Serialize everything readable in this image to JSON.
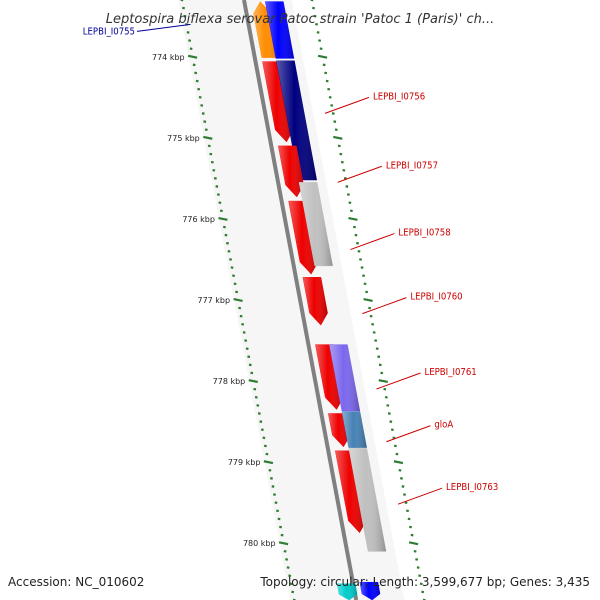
{
  "title": "Leptospira biflexa serovar Patoc strain 'Patoc 1 (Paris)' ch...",
  "footer": {
    "accession": "Accession: NC_010602",
    "topology": "Topology: circular; Length: 3,599,677 bp; Genes: 3,435"
  },
  "colors": {
    "backbone": "#808080",
    "tick": "#2e7d32",
    "cds": "#ee0000",
    "label_red": "#cc0000",
    "label_blue": "#000099"
  },
  "scale": {
    "start_kbp": 773.3,
    "end_kbp": 780.7,
    "ticks": [
      {
        "kbp": 774,
        "label": "774 kbp"
      },
      {
        "kbp": 775,
        "label": "775 kbp"
      },
      {
        "kbp": 776,
        "label": "776 kbp"
      },
      {
        "kbp": 777,
        "label": "777 kbp"
      },
      {
        "kbp": 778,
        "label": "778 kbp"
      },
      {
        "kbp": 779,
        "label": "779 kbp"
      },
      {
        "kbp": 780,
        "label": "780 kbp"
      }
    ]
  },
  "features": [
    {
      "track": "cds",
      "start": 773.32,
      "end": 774.01,
      "strand": -1,
      "color": "#ff8c00"
    },
    {
      "track": "blast",
      "start": 773.32,
      "end": 774.02,
      "color": "#0000ff"
    },
    {
      "track": "cds",
      "start": 774.06,
      "end": 775.05,
      "strand": 1,
      "color": "#ee0000"
    },
    {
      "track": "blast",
      "start": 774.05,
      "end": 775.52,
      "color": "#000080"
    },
    {
      "track": "cds",
      "start": 775.1,
      "end": 775.73,
      "strand": 1,
      "color": "#ee0000"
    },
    {
      "track": "cds",
      "start": 775.78,
      "end": 776.68,
      "strand": 1,
      "color": "#ee0000"
    },
    {
      "track": "blast",
      "start": 775.55,
      "end": 776.58,
      "color": "#c0c0c0"
    },
    {
      "track": "cds",
      "start": 776.72,
      "end": 777.31,
      "strand": 1,
      "color": "#ee0000"
    },
    {
      "track": "cds",
      "start": 777.55,
      "end": 778.35,
      "strand": 1,
      "color": "#ee0000"
    },
    {
      "track": "blast",
      "start": 777.55,
      "end": 778.37,
      "color": "#7b68ee"
    },
    {
      "track": "cds",
      "start": 778.4,
      "end": 778.81,
      "strand": 1,
      "color": "#ee0000"
    },
    {
      "track": "blast",
      "start": 778.38,
      "end": 778.82,
      "color": "#4682b4"
    },
    {
      "track": "cds",
      "start": 778.86,
      "end": 779.87,
      "strand": 1,
      "color": "#ee0000"
    },
    {
      "track": "blast",
      "start": 778.83,
      "end": 780.1,
      "color": "#c0c0c0"
    },
    {
      "track": "cds_alt",
      "start": 780.5,
      "end": 780.7,
      "strand": 1,
      "color": "#00cccc"
    },
    {
      "track": "cds",
      "start": 780.48,
      "end": 780.7,
      "strand": 1,
      "color": "#0000ff"
    }
  ],
  "labels": [
    {
      "text": "LEPBI_I0755",
      "kbp": 773.6,
      "side": "left",
      "color": "#000099"
    },
    {
      "text": "LEPBI_I0756",
      "kbp": 774.55,
      "side": "right",
      "color": "#cc0000"
    },
    {
      "text": "LEPBI_I0757",
      "kbp": 775.4,
      "side": "right",
      "color": "#cc0000"
    },
    {
      "text": "LEPBI_I0758",
      "kbp": 776.23,
      "side": "right",
      "color": "#cc0000"
    },
    {
      "text": "LEPBI_I0760",
      "kbp": 777.02,
      "side": "right",
      "color": "#cc0000"
    },
    {
      "text": "LEPBI_I0761",
      "kbp": 777.95,
      "side": "right",
      "color": "#cc0000"
    },
    {
      "text": "gloA",
      "kbp": 778.6,
      "side": "right",
      "color": "#cc0000"
    },
    {
      "text": "LEPBI_I0763",
      "kbp": 779.37,
      "side": "right",
      "color": "#cc0000"
    }
  ]
}
